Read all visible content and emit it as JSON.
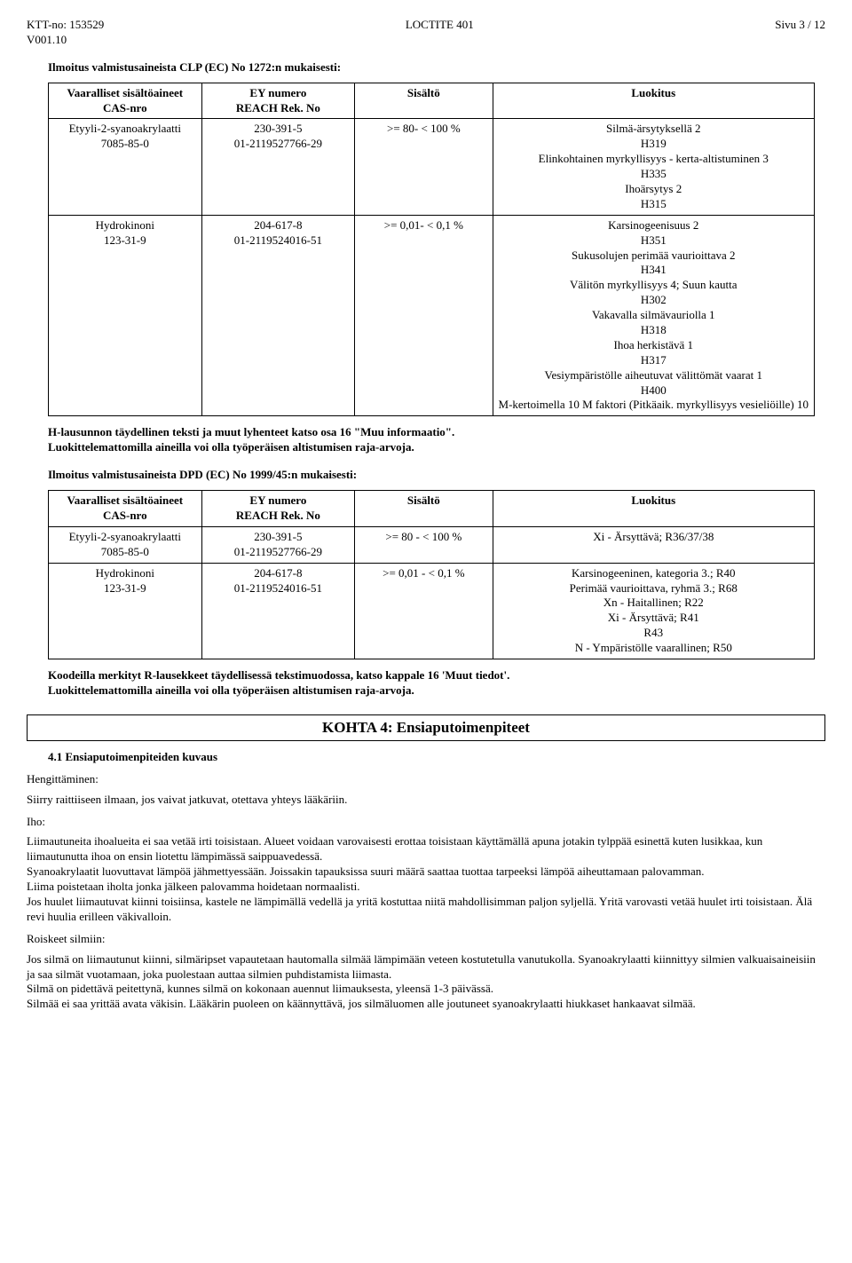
{
  "header": {
    "left_line1": "KTT-no: 153529",
    "left_line2": "V001.10",
    "center": "LOCTITE 401",
    "right": "Sivu 3 / 12"
  },
  "section_clp_title": "Ilmoitus valmistusaineista CLP (EC) No 1272:n mukaisesti:",
  "table_headers": {
    "col1_line1": "Vaaralliset sisältöaineet",
    "col1_line2": "CAS-nro",
    "col2_line1": "EY numero",
    "col2_line2": "REACH Rek. No",
    "col3": "Sisältö",
    "col4": "Luokitus"
  },
  "clp_rows": [
    {
      "name": "Etyyli-2-syanoakrylaatti",
      "cas": "7085-85-0",
      "ey": "230-391-5",
      "reach": "01-2119527766-29",
      "sisalto": ">=  80- < 100 %",
      "luokitus": "Silmä-ärsytyksellä 2\nH319\nElinkohtainen myrkyllisyys - kerta-altistuminen 3\nH335\nIhoärsytys 2\nH315"
    },
    {
      "name": "Hydrokinoni",
      "cas": "123-31-9",
      "ey": "204-617-8",
      "reach": "01-2119524016-51",
      "sisalto": ">=  0,01- <  0,1 %",
      "luokitus": "Karsinogeenisuus 2\nH351\nSukusolujen perimää vaurioittava 2\nH341\nVälitön myrkyllisyys 4;  Suun kautta\nH302\nVakavalla silmävauriolla 1\nH318\nIhoa herkistävä 1\nH317\nVesiympäristölle aiheutuvat välittömät vaarat 1\nH400\nM-kertoimella 10 M faktori (Pitkäaik. myrkyllisyys vesieliöille) 10"
    }
  ],
  "h_statement": "H-lausunnon täydellinen teksti ja muut lyhenteet katso osa 16 \"Muu informaatio\".\nLuokittelemattomilla aineilla voi olla työperäisen altistumisen raja-arvoja.",
  "section_dpd_title": "Ilmoitus valmistusaineista DPD (EC) No 1999/45:n mukaisesti:",
  "dpd_rows": [
    {
      "name": "Etyyli-2-syanoakrylaatti",
      "cas": "7085-85-0",
      "ey": "230-391-5",
      "reach": "01-2119527766-29",
      "sisalto": ">=  80 - < 100  %",
      "luokitus": "Xi - Ärsyttävä;  R36/37/38"
    },
    {
      "name": "Hydrokinoni",
      "cas": "123-31-9",
      "ey": "204-617-8",
      "reach": "01-2119524016-51",
      "sisalto": ">=  0,01 - <  0,1  %",
      "luokitus": "Karsinogeeninen, kategoria 3.;  R40\nPerimää vaurioittava, ryhmä 3.;  R68\nXn - Haitallinen;  R22\nXi - Ärsyttävä;  R41\nR43\nN - Ympäristölle vaarallinen;  R50"
    }
  ],
  "r_statement": "Koodeilla merkityt R-lausekkeet täydellisessä tekstimuodossa, katso kappale 16 'Muut tiedot'.\nLuokittelemattomilla aineilla voi olla työperäisen altistumisen raja-arvoja.",
  "kohta4_title": "KOHTA 4: Ensiaputoimenpiteet",
  "kohta4_sub": "4.1 Ensiaputoimenpiteiden kuvaus",
  "hengitt_label": "Hengittäminen:",
  "hengitt_text": "Siirry raittiiseen ilmaan, jos vaivat jatkuvat, otettava yhteys lääkäriin.",
  "iho_label": "Iho:",
  "iho_text": "Liimautuneita ihoalueita ei saa vetää irti toisistaan. Alueet voidaan varovaisesti erottaa toisistaan käyttämällä apuna jotakin tylppää esinettä kuten lusikkaa, kun liimautunutta ihoa on ensin liotettu lämpimässä saippuavedessä.\nSyanoakrylaatit luovuttavat lämpöä jähmettyessään. Joissakin tapauksissa suuri määrä saattaa tuottaa tarpeeksi lämpöä aiheuttamaan palovamman.\nLiima poistetaan iholta jonka jälkeen palovamma hoidetaan normaalisti.\nJos huulet liimautuvat kiinni toisiinsa, kastele ne lämpimällä vedellä ja yritä kostuttaa niitä mahdollisimman paljon syljellä. Yritä varovasti vetää huulet irti toisistaan.  Älä revi huulia erilleen väkivalloin.",
  "roiskeet_label": "Roiskeet silmiin:",
  "roiskeet_text": "Jos silmä on liimautunut kiinni, silmäripset vapautetaan hautomalla silmää lämpimään veteen kostutetulla vanutukolla. Syanoakrylaatti kiinnittyy silmien valkuaisaineisiin ja saa silmät vuotamaan, joka puolestaan auttaa silmien puhdistamista liimasta.\nSilmä on pidettävä peitettynä, kunnes silmä on kokonaan auennut liimauksesta, yleensä 1-3 päivässä.\nSilmää ei saa yrittää avata väkisin.  Lääkärin puoleen on käännyttävä, jos silmäluomen alle joutuneet syanoakrylaatti hiukkaset hankaavat silmää."
}
